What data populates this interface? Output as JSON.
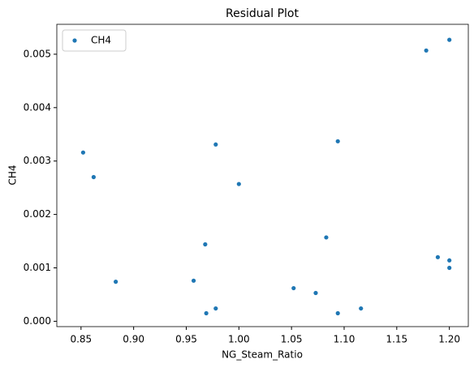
{
  "chart_data": {
    "type": "scatter",
    "title": "Residual Plot",
    "x_label": "NG_Steam_Ratio",
    "y_label": "CH4",
    "series": [
      {
        "name": "CH4",
        "color": "#1f77b4",
        "x": [
          0.852,
          0.862,
          0.883,
          0.957,
          0.968,
          0.969,
          0.978,
          0.978,
          1.0,
          1.052,
          1.073,
          1.083,
          1.094,
          1.094,
          1.116,
          1.178,
          1.189,
          1.2,
          1.2,
          1.2
        ],
        "values": [
          0.00316,
          0.0027,
          0.00074,
          0.00076,
          0.00144,
          0.00015,
          0.00331,
          0.00024,
          0.00257,
          0.00062,
          0.00053,
          0.00157,
          0.00337,
          0.00015,
          0.00024,
          0.00507,
          0.0012,
          0.00527,
          0.00114,
          0.001
        ]
      }
    ],
    "xlim": [
      0.827,
      1.218
    ],
    "ylim": [
      -0.0001,
      0.00556
    ],
    "xticks": [
      0.85,
      {
        "value": 0.9,
        "label": "0.90"
      },
      0.95,
      {
        "value": 1.0,
        "label": "1.00"
      },
      1.05,
      {
        "value": 1.1,
        "label": "1.10"
      },
      1.15,
      {
        "value": 1.2,
        "label": "1.20"
      }
    ],
    "yticks": [
      {
        "value": 0,
        "label": "0.000"
      },
      {
        "value": 0.001,
        "label": "0.001"
      },
      {
        "value": 0.002,
        "label": "0.002"
      },
      {
        "value": 0.003,
        "label": "0.003"
      },
      {
        "value": 0.004,
        "label": "0.004"
      },
      {
        "value": 0.005,
        "label": "0.005"
      }
    ],
    "legend": "upper left",
    "grid": false
  }
}
